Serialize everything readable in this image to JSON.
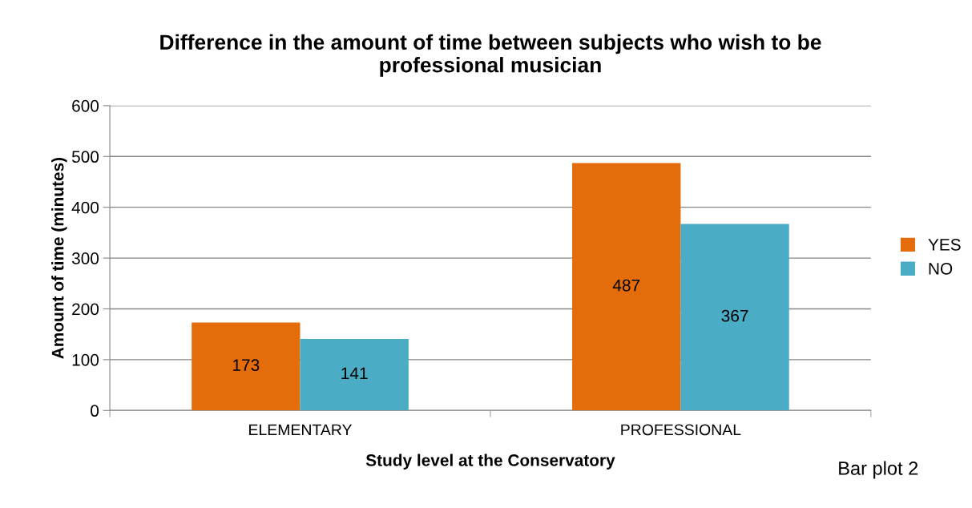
{
  "chart_data": {
    "type": "bar",
    "title": "Difference in the amount of time between subjects who wish to be\nprofessional musician",
    "xlabel": "Study level at the Conservatory",
    "ylabel": "Amount of time (minutes)",
    "categories": [
      "ELEMENTARY",
      "PROFESSIONAL"
    ],
    "series": [
      {
        "name": "YES",
        "color": "#e46c0a",
        "values": [
          173,
          487
        ]
      },
      {
        "name": "NO",
        "color": "#4bacc6",
        "values": [
          141,
          367
        ]
      }
    ],
    "ylim": [
      0,
      600
    ],
    "yticks": [
      0,
      100,
      200,
      300,
      400,
      500,
      600
    ],
    "grid": "y",
    "legend": "right",
    "data_labels": true,
    "annotations": [
      "Bar plot 2"
    ]
  }
}
